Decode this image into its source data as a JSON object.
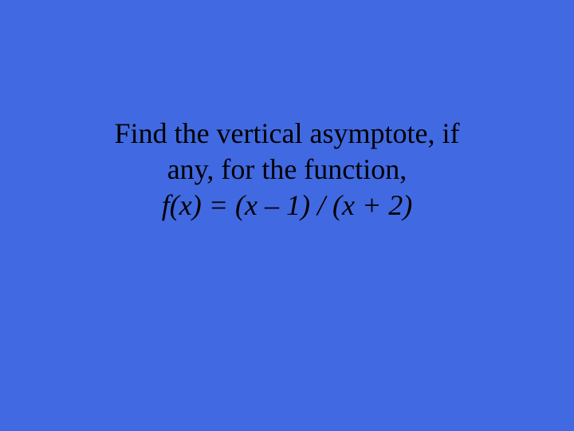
{
  "slide": {
    "background_color": "#4169e1",
    "text_color": "#000000",
    "font_family": "Times New Roman",
    "font_size_pt": 36,
    "line1": "Find the vertical asymptote, if",
    "line2": "any, for the function,",
    "line3": "f(x) =  (x – 1) / (x + 2)"
  }
}
